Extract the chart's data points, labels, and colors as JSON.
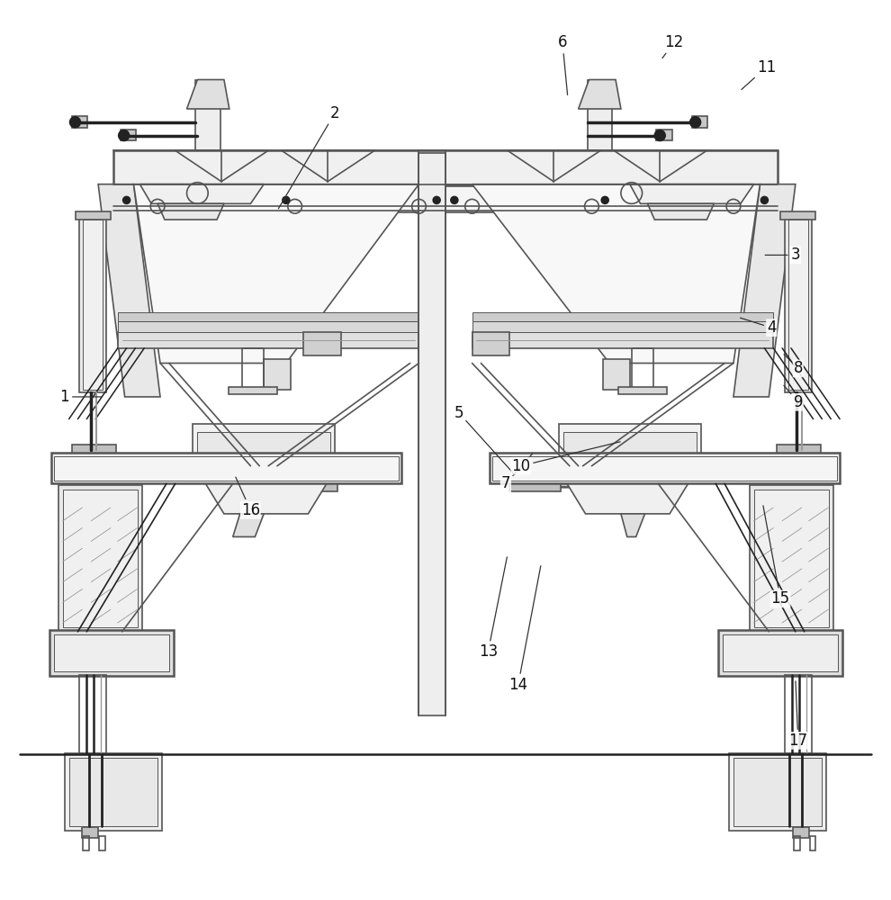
{
  "bg_color": "#ffffff",
  "line_color": "#555555",
  "line_color_dark": "#222222",
  "line_color_light": "#999999",
  "label_color": "#111111",
  "figsize": [
    9.9,
    10.0
  ],
  "dpi": 100,
  "labels": {
    "1": [
      0.07,
      0.56,
      0.05,
      0.56
    ],
    "2": [
      0.3,
      0.78,
      0.37,
      0.88
    ],
    "3": [
      0.86,
      0.72,
      0.89,
      0.72
    ],
    "4": [
      0.83,
      0.65,
      0.86,
      0.64
    ],
    "5": [
      0.55,
      0.54,
      0.51,
      0.54
    ],
    "6": [
      0.634,
      0.9,
      0.628,
      0.96
    ],
    "7": [
      0.595,
      0.5,
      0.565,
      0.46
    ],
    "8": [
      0.885,
      0.6,
      0.895,
      0.59
    ],
    "9": [
      0.885,
      0.56,
      0.895,
      0.55
    ],
    "10": [
      0.695,
      0.52,
      0.585,
      0.48
    ],
    "11": [
      0.835,
      0.91,
      0.86,
      0.93
    ],
    "12": [
      0.74,
      0.94,
      0.755,
      0.96
    ],
    "13": [
      0.565,
      0.38,
      0.545,
      0.27
    ],
    "14": [
      0.6,
      0.37,
      0.58,
      0.23
    ],
    "15": [
      0.86,
      0.44,
      0.875,
      0.33
    ],
    "16": [
      0.265,
      0.475,
      0.28,
      0.43
    ],
    "17": [
      0.89,
      0.24,
      0.895,
      0.17
    ]
  }
}
